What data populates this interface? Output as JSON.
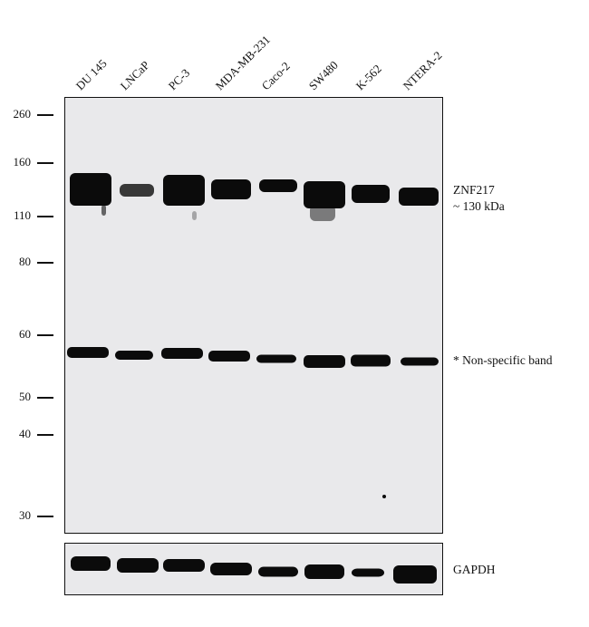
{
  "lanes": [
    "DU 145",
    "LNCaP",
    "PC-3",
    "MDA-MB-231",
    "Caco-2",
    "SW480",
    "K-562",
    "NTERA-2"
  ],
  "mw_markers": [
    "260",
    "160",
    "110",
    "80",
    "60",
    "50",
    "40",
    "30"
  ],
  "labels": {
    "target": "ZNF217",
    "target_size": "~ 130 kDa",
    "nonspecific": "* Non-specific band",
    "loading_control": "GAPDH"
  },
  "colors": {
    "blot_bg": "#e9e9eb",
    "band": "#0b0b0b",
    "border": "#111111"
  }
}
